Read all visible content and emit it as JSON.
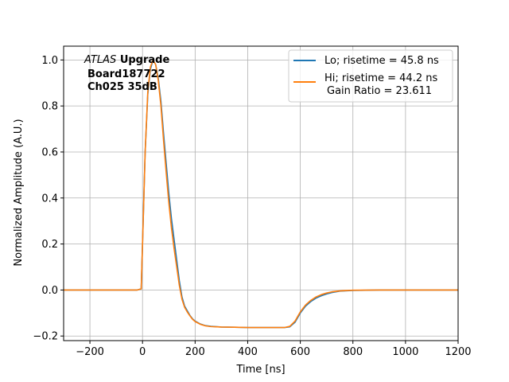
{
  "chart_data": {
    "type": "line",
    "title": "",
    "xlabel": "Time [ns]",
    "ylabel": "Normalized Amplitude (A.U.)",
    "xlim": [
      -300,
      1200
    ],
    "ylim": [
      -0.22,
      1.06
    ],
    "xticks": [
      -200,
      0,
      200,
      400,
      600,
      800,
      1000,
      1200
    ],
    "xtick_labels": [
      "−200",
      "0",
      "200",
      "400",
      "600",
      "800",
      "1000",
      "1200"
    ],
    "yticks": [
      -0.2,
      0.0,
      0.2,
      0.4,
      0.6,
      0.8,
      1.0
    ],
    "ytick_labels": [
      "−0.2",
      "0.0",
      "0.2",
      "0.4",
      "0.6",
      "0.8",
      "1.0"
    ],
    "grid": true,
    "legend_position": "top-right",
    "annotation": {
      "italic": "ATLAS",
      "bold": "Upgrade",
      "line2": "Board187722",
      "line3": "Ch025 35dB"
    },
    "series": [
      {
        "name": "Lo; risetime = 45.8 ns",
        "color": "#1f77b4",
        "x": [
          -300,
          -200,
          -100,
          -20,
          -5,
          0,
          10,
          20,
          30,
          40,
          50,
          60,
          70,
          80,
          90,
          100,
          110,
          120,
          130,
          140,
          150,
          160,
          170,
          180,
          190,
          200,
          220,
          240,
          260,
          300,
          350,
          400,
          450,
          500,
          540,
          560,
          580,
          600,
          620,
          640,
          660,
          680,
          700,
          720,
          750,
          800,
          900,
          1000,
          1100,
          1200
        ],
        "y": [
          0.0,
          0.0,
          0.0,
          0.0,
          0.005,
          0.2,
          0.6,
          0.85,
          0.96,
          1.0,
          0.98,
          0.92,
          0.82,
          0.68,
          0.55,
          0.42,
          0.31,
          0.22,
          0.13,
          0.04,
          -0.03,
          -0.07,
          -0.09,
          -0.11,
          -0.125,
          -0.135,
          -0.148,
          -0.155,
          -0.158,
          -0.161,
          -0.162,
          -0.163,
          -0.163,
          -0.163,
          -0.163,
          -0.16,
          -0.14,
          -0.1,
          -0.07,
          -0.05,
          -0.035,
          -0.025,
          -0.017,
          -0.011,
          -0.005,
          -0.002,
          0.0,
          0.0,
          0.0,
          0.0
        ]
      },
      {
        "name": "Hi; risetime = 44.2 ns",
        "name_line2": "Gain Ratio = 23.611",
        "color": "#ff7f0e",
        "x": [
          -300,
          -200,
          -100,
          -20,
          -5,
          0,
          10,
          20,
          30,
          40,
          50,
          60,
          70,
          80,
          90,
          100,
          110,
          120,
          130,
          140,
          150,
          160,
          170,
          180,
          190,
          200,
          220,
          240,
          260,
          300,
          350,
          400,
          450,
          500,
          540,
          560,
          580,
          600,
          620,
          640,
          660,
          680,
          700,
          720,
          750,
          800,
          900,
          1000,
          1100,
          1200
        ],
        "y": [
          0.0,
          0.0,
          0.0,
          0.0,
          0.005,
          0.2,
          0.6,
          0.86,
          0.97,
          1.0,
          0.98,
          0.91,
          0.8,
          0.65,
          0.51,
          0.38,
          0.27,
          0.18,
          0.1,
          0.02,
          -0.04,
          -0.075,
          -0.095,
          -0.112,
          -0.127,
          -0.137,
          -0.149,
          -0.156,
          -0.159,
          -0.161,
          -0.162,
          -0.163,
          -0.163,
          -0.163,
          -0.163,
          -0.158,
          -0.135,
          -0.095,
          -0.065,
          -0.045,
          -0.03,
          -0.02,
          -0.013,
          -0.008,
          -0.004,
          -0.001,
          0.0,
          0.0,
          0.0,
          0.0
        ]
      }
    ]
  }
}
